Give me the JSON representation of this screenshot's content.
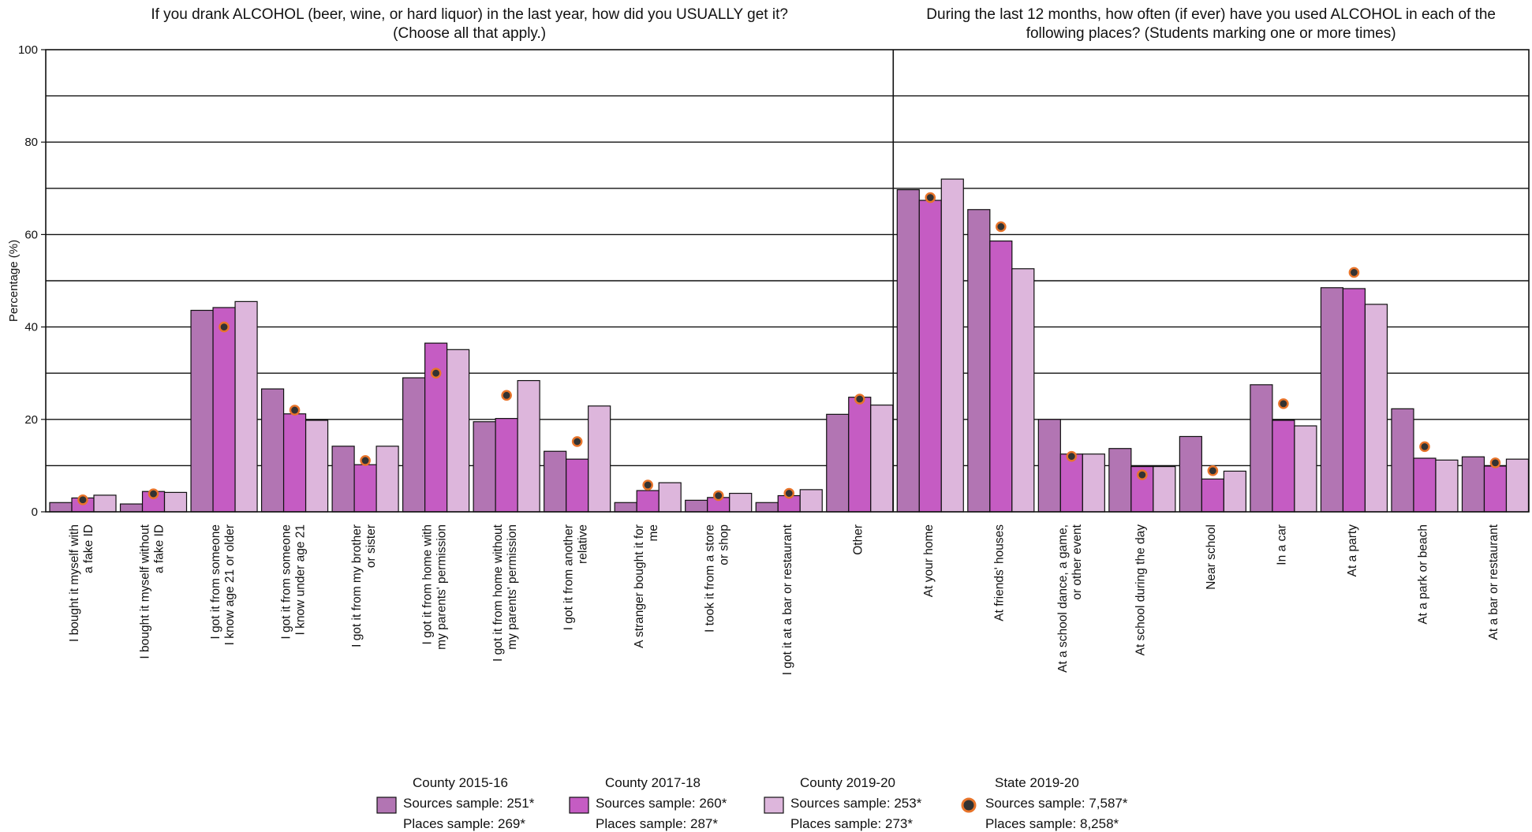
{
  "chart_data": {
    "type": "bar",
    "ylabel": "Percentage (%)",
    "ylim": [
      0,
      100
    ],
    "yticks": [
      0,
      20,
      40,
      60,
      80,
      100
    ],
    "grid": true,
    "legend_position": "bottom",
    "colors": {
      "county_2015_16": "#b275b3",
      "county_2017_18": "#c55cc3",
      "county_2019_20": "#ddb6dc",
      "state_dot_fill": "#333333",
      "state_dot_stroke": "#e8742a"
    },
    "panels": [
      {
        "title": [
          "If you drank ALCOHOL (beer, wine, or hard liquor) in the last year, how did you USUALLY get it?",
          "(Choose all that apply.)"
        ],
        "categories": [
          [
            "I bought it myself with",
            "a fake ID"
          ],
          [
            "I bought it myself without",
            "a fake ID"
          ],
          [
            "I got it from someone",
            "I know age 21 or older"
          ],
          [
            "I got it from someone",
            "I know under age 21"
          ],
          [
            "I got it from my brother",
            "or sister"
          ],
          [
            "I got it from home with",
            "my parents' permission"
          ],
          [
            "I got it from home without",
            "my parents' permission"
          ],
          [
            "I got it from another",
            "relative"
          ],
          [
            "A stranger bought it for",
            "me"
          ],
          [
            "I took it from a store",
            "or shop"
          ],
          [
            "I got it at a bar or restaurant"
          ],
          [
            "Other"
          ]
        ],
        "series": [
          {
            "name": "County 2015-16",
            "values": [
              2,
              1.7,
              43.6,
              26.6,
              14.2,
              29,
              19.5,
              13.1,
              2,
              2.5,
              2,
              21.1
            ]
          },
          {
            "name": "County 2017-18",
            "values": [
              3,
              4.4,
              44.2,
              21.2,
              10.2,
              36.5,
              20.2,
              11.4,
              4.6,
              3.1,
              3.5,
              24.8
            ]
          },
          {
            "name": "County 2019-20",
            "values": [
              3.6,
              4.2,
              45.5,
              19.8,
              14.2,
              35.1,
              28.4,
              22.9,
              6.3,
              4,
              4.8,
              23.1
            ]
          }
        ],
        "state_dots": [
          2.6,
          3.9,
          40,
          22,
          11.1,
          30,
          25.2,
          15.2,
          5.8,
          3.5,
          4,
          24.4
        ]
      },
      {
        "title": [
          "During the last 12 months, how often (if ever) have you used ALCOHOL in each of the",
          "following places? (Students marking one or more times)"
        ],
        "categories": [
          [
            "At your home"
          ],
          [
            "At friends' houses"
          ],
          [
            "At a school dance, a game,",
            "or other event"
          ],
          [
            "At school during the day"
          ],
          [
            "Near school"
          ],
          [
            "In a car"
          ],
          [
            "At a party"
          ],
          [
            "At a park or beach"
          ],
          [
            "At a bar or restaurant"
          ]
        ],
        "series": [
          {
            "name": "County 2015-16",
            "values": [
              69.7,
              65.4,
              20,
              13.7,
              16.3,
              27.5,
              48.5,
              22.3,
              11.9
            ]
          },
          {
            "name": "County 2017-18",
            "values": [
              67.4,
              58.6,
              12.5,
              9.8,
              7.1,
              19.8,
              48.3,
              11.6,
              9.9
            ]
          },
          {
            "name": "County 2019-20",
            "values": [
              72,
              52.6,
              12.5,
              9.8,
              8.8,
              18.6,
              44.9,
              11.2,
              11.4
            ]
          }
        ],
        "state_dots": [
          68,
          61.7,
          12,
          8,
          8.9,
          23.4,
          51.8,
          14.1,
          10.6
        ]
      }
    ],
    "legend": [
      {
        "kind": "bar",
        "series": "county_2015_16",
        "lines": [
          "County 2015-16",
          "Sources sample: 251*",
          "Places sample: 269*"
        ]
      },
      {
        "kind": "bar",
        "series": "county_2017_18",
        "lines": [
          "County 2017-18",
          "Sources sample: 260*",
          "Places sample: 287*"
        ]
      },
      {
        "kind": "bar",
        "series": "county_2019_20",
        "lines": [
          "County 2019-20",
          "Sources sample: 253*",
          "Places sample: 273*"
        ]
      },
      {
        "kind": "dot",
        "series": "state",
        "lines": [
          "State 2019-20",
          "Sources sample: 7,587*",
          "Places sample: 8,258*"
        ]
      }
    ]
  }
}
